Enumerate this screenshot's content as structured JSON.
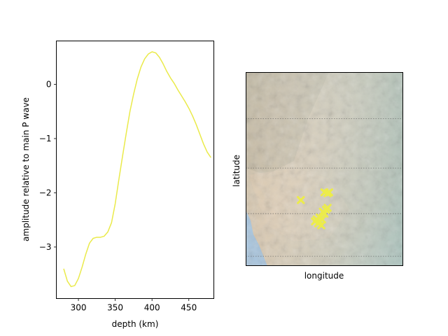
{
  "chart_data": [
    {
      "type": "line",
      "xlabel": "depth (km)",
      "ylabel": "amplitude relative to main P wave",
      "xlim": [
        270,
        484
      ],
      "ylim": [
        -3.95,
        0.8
      ],
      "xticks": [
        300,
        350,
        400,
        450
      ],
      "yticks": [
        0,
        -1,
        -2,
        -3
      ],
      "grid": false,
      "series": [
        {
          "color": "#eaea4a",
          "x": [
            280,
            285,
            290,
            295,
            300,
            305,
            310,
            315,
            320,
            325,
            330,
            335,
            340,
            345,
            350,
            355,
            360,
            365,
            370,
            375,
            380,
            385,
            390,
            395,
            400,
            405,
            410,
            415,
            420,
            425,
            430,
            435,
            440,
            445,
            450,
            455,
            460,
            465,
            470,
            475,
            480
          ],
          "y": [
            -3.4,
            -3.63,
            -3.73,
            -3.71,
            -3.58,
            -3.37,
            -3.13,
            -2.93,
            -2.84,
            -2.82,
            -2.82,
            -2.8,
            -2.72,
            -2.55,
            -2.2,
            -1.75,
            -1.32,
            -0.9,
            -0.5,
            -0.18,
            0.1,
            0.32,
            0.47,
            0.56,
            0.6,
            0.58,
            0.5,
            0.38,
            0.24,
            0.12,
            0.02,
            -0.1,
            -0.21,
            -0.32,
            -0.44,
            -0.58,
            -0.74,
            -0.92,
            -1.1,
            -1.25,
            -1.35
          ]
        }
      ]
    },
    {
      "type": "scatter",
      "xlabel": "longitude",
      "ylabel": "latitude",
      "xticks": [],
      "yticks": [],
      "basemap": "shaded-relief",
      "grid": "parallels-dotted",
      "marker": "x",
      "marker_color": "#ecec4a",
      "points": [
        {
          "lon": 0.35,
          "lat": 0.34
        },
        {
          "lon": 0.5,
          "lat": 0.38
        },
        {
          "lon": 0.52,
          "lat": 0.375
        },
        {
          "lon": 0.53,
          "lat": 0.38
        },
        {
          "lon": 0.52,
          "lat": 0.3
        },
        {
          "lon": 0.51,
          "lat": 0.29
        },
        {
          "lon": 0.49,
          "lat": 0.28
        },
        {
          "lon": 0.47,
          "lat": 0.25
        },
        {
          "lon": 0.5,
          "lat": 0.27
        },
        {
          "lon": 0.45,
          "lat": 0.24
        },
        {
          "lon": 0.46,
          "lat": 0.22
        },
        {
          "lon": 0.47,
          "lat": 0.23
        },
        {
          "lon": 0.48,
          "lat": 0.21
        },
        {
          "lon": 0.44,
          "lat": 0.23
        },
        {
          "lon": 0.485,
          "lat": 0.24
        }
      ]
    }
  ]
}
